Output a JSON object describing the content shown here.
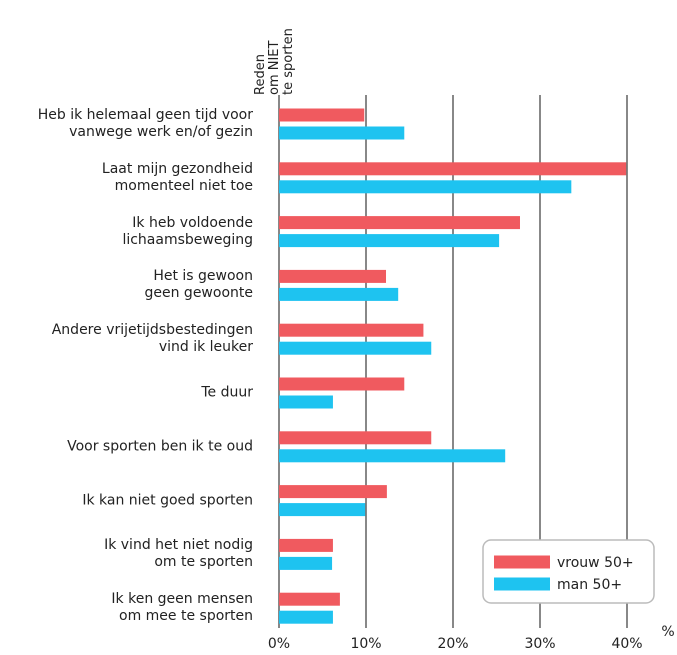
{
  "chart_data": {
    "type": "bar",
    "orientation": "horizontal",
    "y_title": "Reden\nom NIET\nte sporten",
    "x_label": "%",
    "categories": [
      "Heb ik helemaal geen tijd voor\nvanwege werk en/of gezin",
      "Laat mijn gezondheid\nmomenteel niet toe",
      "Ik heb voldoende\nlichaamsbeweging",
      "Het is gewoon\ngeen gewoonte",
      "Andere vrijetijdsbestedingen\nvind ik leuker",
      "Te duur",
      "Voor sporten ben ik te oud",
      "Ik kan niet goed sporten",
      "Ik vind het niet nodig\nom te sporten",
      "Ik ken geen mensen\nom mee te sporten"
    ],
    "series": [
      {
        "name": "vrouw 50+",
        "color": "#f05a5f",
        "values": [
          9.8,
          39.9,
          27.7,
          12.3,
          16.6,
          14.4,
          17.5,
          12.4,
          6.2,
          7.0
        ]
      },
      {
        "name": "man 50+",
        "color": "#1ec3f0",
        "values": [
          14.4,
          33.6,
          25.3,
          13.7,
          17.5,
          6.2,
          26.0,
          9.9,
          6.1,
          6.2
        ]
      }
    ],
    "xlim": [
      0,
      40
    ],
    "xticks": [
      {
        "value": 0,
        "label": "0%"
      },
      {
        "value": 10,
        "label": "10%"
      },
      {
        "value": 20,
        "label": "20%"
      },
      {
        "value": 30,
        "label": "30%"
      },
      {
        "value": 40,
        "label": "40%"
      }
    ],
    "grid": true,
    "legend": "lower right"
  }
}
